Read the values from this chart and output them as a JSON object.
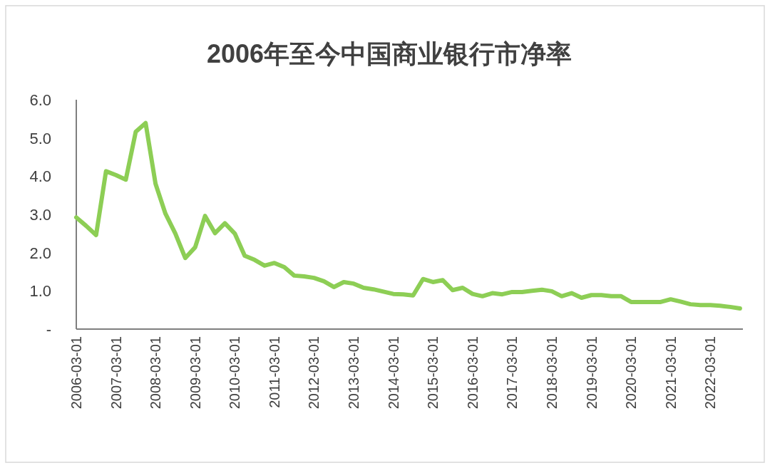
{
  "chart_data": {
    "type": "line",
    "title": "2006年至今中国商业银行市净率",
    "categories": [
      "2006-03-01",
      null,
      null,
      null,
      "2007-03-01",
      null,
      null,
      null,
      "2008-03-01",
      null,
      null,
      null,
      "2009-03-01",
      null,
      null,
      null,
      "2010-03-01",
      null,
      null,
      null,
      "2011-03-01",
      null,
      null,
      null,
      "2012-03-01",
      null,
      null,
      null,
      "2013-03-01",
      null,
      null,
      null,
      "2014-03-01",
      null,
      null,
      null,
      "2015-03-01",
      null,
      null,
      null,
      "2016-03-01",
      null,
      null,
      null,
      "2017-03-01",
      null,
      null,
      null,
      "2018-03-01",
      null,
      null,
      null,
      "2019-03-01",
      null,
      null,
      null,
      "2020-03-01",
      null,
      null,
      null,
      "2021-03-01",
      null,
      null,
      null,
      "2022-03-01",
      null,
      null,
      null
    ],
    "series": [
      {
        "color": "#8dce55",
        "values": [
          2.92,
          2.7,
          2.46,
          4.13,
          4.03,
          3.91,
          5.16,
          5.39,
          3.8,
          3.02,
          2.5,
          1.86,
          2.14,
          2.96,
          2.51,
          2.77,
          2.5,
          1.92,
          1.81,
          1.66,
          1.73,
          1.62,
          1.4,
          1.38,
          1.34,
          1.25,
          1.1,
          1.23,
          1.19,
          1.08,
          1.04,
          0.98,
          0.92,
          0.91,
          0.88,
          1.31,
          1.23,
          1.28,
          1.02,
          1.08,
          0.92,
          0.86,
          0.94,
          0.91,
          0.97,
          0.97,
          1.0,
          1.03,
          0.99,
          0.86,
          0.94,
          0.82,
          0.89,
          0.89,
          0.86,
          0.86,
          0.71,
          0.71,
          0.71,
          0.71,
          0.78,
          0.72,
          0.65,
          0.63,
          0.63,
          0.61,
          0.58,
          0.54
        ]
      }
    ],
    "ylim": [
      0,
      6
    ],
    "yticks": [
      {
        "value": 0,
        "label": "-"
      },
      {
        "value": 1,
        "label": "1.0"
      },
      {
        "value": 2,
        "label": "2.0"
      },
      {
        "value": 3,
        "label": "3.0"
      },
      {
        "value": 4,
        "label": "4.0"
      },
      {
        "value": 5,
        "label": "5.0"
      },
      {
        "value": 6,
        "label": "6.0"
      }
    ],
    "grid": false,
    "marker": "none",
    "line_style": "solid"
  }
}
